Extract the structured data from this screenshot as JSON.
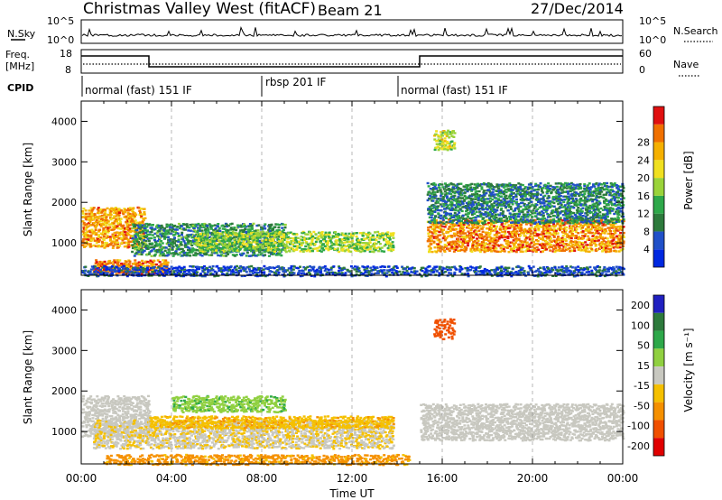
{
  "header": {
    "station": "Christmas Valley West (fitACF)",
    "beam": "Beam 21",
    "date": "27/Dec/2014"
  },
  "noise_panel": {
    "left_label": "N.Sky",
    "right_label": "N.Search",
    "left_ticks": [
      "10^5",
      "10^0"
    ],
    "right_ticks": [
      "10^5",
      "10^0"
    ]
  },
  "freq_panel": {
    "left_label_1": "Freq.",
    "left_label_2": "[MHz]",
    "left_ticks": [
      "18",
      "8"
    ],
    "right_label": "Nave",
    "right_ticks": [
      "60",
      "0"
    ]
  },
  "cpid": {
    "label": "CPID",
    "segments": [
      {
        "name": "normal (fast) 151 IF",
        "start_hour": 0
      },
      {
        "name": "rbsp 201 IF",
        "start_hour": 8
      },
      {
        "name": "normal (fast) 151 IF",
        "start_hour": 14
      }
    ]
  },
  "time_axis": {
    "ticks": [
      "00:00",
      "04:00",
      "08:00",
      "12:00",
      "16:00",
      "20:00",
      "00:00"
    ],
    "label": "Time UT"
  },
  "colors": {
    "power_scale": [
      "#0028e0",
      "#2050c8",
      "#2d7a3c",
      "#2ea84a",
      "#9ad33a",
      "#f0e020",
      "#f5b000",
      "#f07000",
      "#e01010"
    ],
    "velocity_scale": [
      "#2020c0",
      "#2d7a3c",
      "#2ea84a",
      "#90d040",
      "#c8c8c0",
      "#f5c000",
      "#f59000",
      "#f05000",
      "#e00000"
    ]
  },
  "chart_data": [
    {
      "type": "heatmap",
      "title": "",
      "xlabel": "",
      "ylabel": "Slant Range [km]",
      "xlim": [
        0,
        24
      ],
      "ylim": [
        200,
        4500
      ],
      "yticks": [
        "1000",
        "2000",
        "3000",
        "4000"
      ],
      "colorbar": {
        "label": "Power [dB]",
        "ticks": [
          "4",
          "8",
          "12",
          "16",
          "20",
          "24",
          "28"
        ]
      },
      "features": [
        {
          "t0": 0.0,
          "t1": 2.8,
          "r0": 900,
          "r1": 1900,
          "v": 24
        },
        {
          "t0": 0.5,
          "t1": 3.8,
          "r0": 250,
          "r1": 600,
          "v": 26
        },
        {
          "t0": 2.2,
          "t1": 9.0,
          "r0": 700,
          "r1": 1500,
          "v": 10
        },
        {
          "t0": 5.0,
          "t1": 13.8,
          "r0": 800,
          "r1": 1300,
          "v": 16
        },
        {
          "t0": 15.3,
          "t1": 24.0,
          "r0": 800,
          "r1": 1600,
          "v": 25
        },
        {
          "t0": 15.3,
          "t1": 24.0,
          "r0": 1500,
          "r1": 2500,
          "v": 9
        },
        {
          "t0": 15.6,
          "t1": 16.5,
          "r0": 3300,
          "r1": 3800,
          "v": 18
        },
        {
          "t0": 0.0,
          "t1": 24.0,
          "r0": 200,
          "r1": 450,
          "v": 5
        }
      ]
    },
    {
      "type": "heatmap",
      "title": "",
      "xlabel": "Time UT",
      "ylabel": "Slant Range [km]",
      "xlim": [
        0,
        24
      ],
      "ylim": [
        200,
        4500
      ],
      "yticks": [
        "1000",
        "2000",
        "3000",
        "4000"
      ],
      "colorbar": {
        "label": "Velocity [m s⁻¹]",
        "ticks": [
          "200",
          "100",
          "50",
          "15",
          "-15",
          "-50",
          "-100",
          "-200"
        ]
      },
      "features": [
        {
          "t0": 0.0,
          "t1": 3.0,
          "r0": 900,
          "r1": 1900,
          "v": 0
        },
        {
          "t0": 0.5,
          "t1": 13.8,
          "r0": 600,
          "r1": 1300,
          "v": -10
        },
        {
          "t0": 3.0,
          "t1": 13.8,
          "r0": 1100,
          "r1": 1400,
          "v": -40
        },
        {
          "t0": 1.0,
          "t1": 14.5,
          "r0": 200,
          "r1": 450,
          "v": -60
        },
        {
          "t0": 15.0,
          "t1": 24.0,
          "r0": 800,
          "r1": 1700,
          "v": 0
        },
        {
          "t0": 15.6,
          "t1": 16.5,
          "r0": 3300,
          "r1": 3800,
          "v": -150
        },
        {
          "t0": 4.0,
          "t1": 9.0,
          "r0": 1500,
          "r1": 1900,
          "v": 40
        }
      ]
    }
  ]
}
